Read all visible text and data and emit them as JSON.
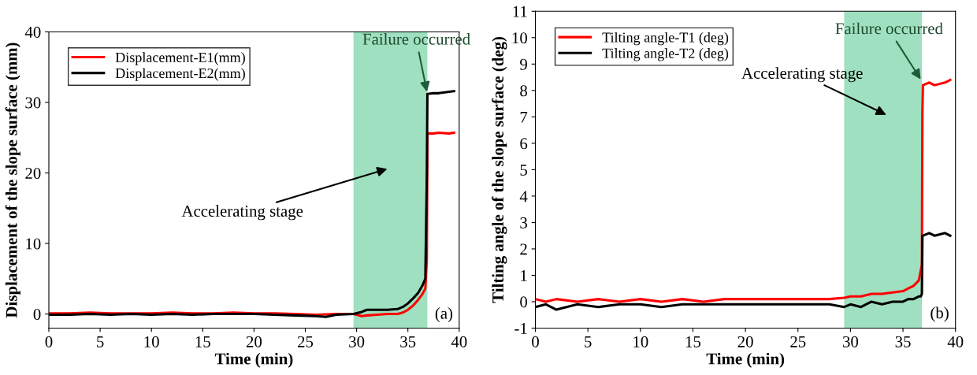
{
  "chart_data": [
    {
      "type": "line",
      "xlabel": "Time (min)",
      "ylabel": "Displacement of the slope surface (mm)",
      "xlim": [
        0,
        40
      ],
      "xticks": [
        0,
        5,
        10,
        15,
        20,
        25,
        30,
        35,
        40
      ],
      "ylim": [
        -2,
        40
      ],
      "yticks": [
        0,
        10,
        20,
        30,
        40
      ],
      "grid": false,
      "legend": "top left",
      "line_style": "solid",
      "series": [
        {
          "name": "Displacement-E1(mm)",
          "color": "#ff0000",
          "x": [
            0,
            2,
            4,
            6,
            8,
            10,
            12,
            14,
            16,
            18,
            20,
            22,
            24,
            26,
            28,
            29.7,
            30.5,
            31,
            32,
            33,
            34,
            34.5,
            35,
            35.5,
            36,
            36.4,
            36.7,
            36.85,
            36.9,
            37.5,
            38,
            39,
            39.5
          ],
          "values": [
            0.1,
            0.1,
            0.2,
            0.1,
            0.1,
            0.1,
            0.2,
            0.1,
            0.1,
            0.2,
            0.1,
            0.1,
            0.0,
            -0.1,
            0.0,
            0.0,
            -0.3,
            -0.2,
            -0.1,
            0.0,
            0.0,
            0.2,
            0.6,
            1.2,
            2.0,
            2.8,
            3.6,
            8.0,
            25.6,
            25.6,
            25.7,
            25.6,
            25.7
          ]
        },
        {
          "name": "Displacement-E2(mm)",
          "color": "#000000",
          "x": [
            0,
            2,
            4,
            6,
            8,
            10,
            12,
            14,
            16,
            18,
            20,
            22,
            24,
            26,
            27,
            28,
            29.7,
            30.5,
            31,
            32,
            33,
            34,
            34.5,
            35,
            35.5,
            36,
            36.4,
            36.7,
            36.85,
            36.9,
            37.5,
            38,
            39,
            39.5
          ],
          "values": [
            -0.1,
            -0.1,
            0.0,
            -0.1,
            0.0,
            -0.1,
            0.0,
            -0.1,
            0.0,
            0.0,
            0.0,
            -0.1,
            -0.2,
            -0.3,
            -0.4,
            -0.1,
            0.0,
            0.3,
            0.6,
            0.6,
            0.6,
            0.7,
            1.0,
            1.5,
            2.2,
            3.0,
            4.0,
            5.0,
            20.0,
            31.2,
            31.3,
            31.3,
            31.5,
            31.6
          ]
        }
      ],
      "annotations": [
        {
          "text": "Failure occurred",
          "x": 36.9,
          "y": 31.2
        },
        "Accelerating stage",
        "(a)"
      ],
      "bands": [
        {
          "axis": "x",
          "from": 29.7,
          "to": 36.9,
          "color": "#9ee0bf"
        }
      ]
    },
    {
      "type": "line",
      "xlabel": "Time (min)",
      "ylabel": "Tilting angle of the slope surface (deg)",
      "xlim": [
        0,
        40
      ],
      "xticks": [
        0,
        5,
        10,
        15,
        20,
        25,
        30,
        35,
        40
      ],
      "ylim": [
        -1,
        11
      ],
      "yticks": [
        -1,
        0,
        1,
        2,
        3,
        4,
        5,
        6,
        7,
        8,
        9,
        10,
        11
      ],
      "grid": false,
      "legend": "top left",
      "line_style": "solid",
      "series": [
        {
          "name": "Tilting angle-T1 (deg)",
          "color": "#ff0000",
          "x": [
            0,
            1,
            2,
            4,
            6,
            8,
            10,
            12,
            14,
            16,
            18,
            20,
            22,
            24,
            26,
            28,
            29.4,
            30,
            31,
            32,
            33,
            34,
            35,
            35.5,
            36,
            36.5,
            36.7,
            36.8,
            36.85,
            36.9,
            37.5,
            38,
            39,
            39.5
          ],
          "values": [
            0.1,
            0.0,
            0.1,
            0.0,
            0.1,
            0.0,
            0.1,
            0.0,
            0.1,
            0.0,
            0.1,
            0.1,
            0.1,
            0.1,
            0.1,
            0.1,
            0.15,
            0.2,
            0.2,
            0.3,
            0.3,
            0.35,
            0.4,
            0.5,
            0.6,
            0.8,
            1.2,
            1.4,
            7.2,
            8.2,
            8.3,
            8.2,
            8.3,
            8.4
          ]
        },
        {
          "name": "Tilting angle-T2 (deg)",
          "color": "#000000",
          "x": [
            0,
            1,
            2,
            4,
            6,
            8,
            10,
            12,
            14,
            16,
            18,
            20,
            22,
            24,
            26,
            28,
            29.4,
            30,
            31,
            32,
            33,
            34,
            35,
            35.5,
            36,
            36.5,
            36.7,
            36.8,
            36.85,
            36.9,
            37.5,
            38,
            39,
            39.5
          ],
          "values": [
            -0.2,
            -0.1,
            -0.3,
            -0.1,
            -0.2,
            -0.1,
            -0.1,
            -0.2,
            -0.1,
            -0.1,
            -0.1,
            -0.1,
            -0.1,
            -0.1,
            -0.1,
            -0.1,
            -0.2,
            -0.1,
            -0.2,
            0.0,
            -0.1,
            0.0,
            0.0,
            0.1,
            0.1,
            0.2,
            0.2,
            0.3,
            2.5,
            2.5,
            2.6,
            2.5,
            2.6,
            2.5
          ]
        }
      ],
      "annotations": [
        {
          "text": "Failure occurred",
          "x": 36.8,
          "y": 8.35
        },
        "Accelerating stage",
        "(b)"
      ],
      "bands": [
        {
          "axis": "x",
          "from": 29.4,
          "to": 36.8,
          "color": "#9ee0bf"
        }
      ]
    }
  ]
}
